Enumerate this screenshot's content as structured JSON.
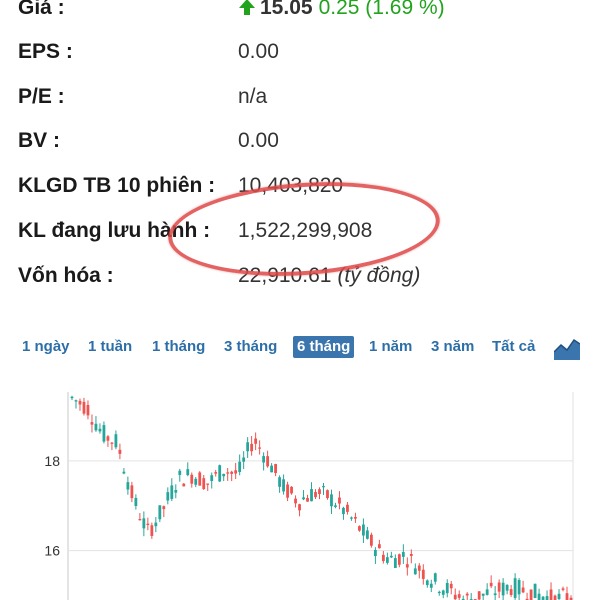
{
  "info": {
    "price": {
      "label": "Giá :",
      "value": "15.05",
      "change": "0.25 (1.69 %)"
    },
    "eps": {
      "label": "EPS :",
      "value": "0.00"
    },
    "pe": {
      "label": "P/E :",
      "value": "n/a"
    },
    "bv": {
      "label": "BV :",
      "value": "0.00"
    },
    "klgd": {
      "label": "KLGD TB 10 phiên :",
      "value": "10,403,820"
    },
    "outstanding": {
      "label": "KL đang lưu hành :",
      "value": "1,522,299,908"
    },
    "market_cap": {
      "label": "Vốn hóa :",
      "value": "22,910.61",
      "unit": "(tỷ đồng)"
    }
  },
  "tabs": [
    {
      "label": "1 ngày",
      "active": false
    },
    {
      "label": "1 tuần",
      "active": false
    },
    {
      "label": "1 tháng",
      "active": false
    },
    {
      "label": "3 tháng",
      "active": false
    },
    {
      "label": "6 tháng",
      "active": true
    },
    {
      "label": "1 năm",
      "active": false
    },
    {
      "label": "3 năm",
      "active": false
    },
    {
      "label": "Tất cả",
      "active": false
    }
  ],
  "colors": {
    "up": "#26a69a",
    "down": "#ef5350",
    "price_up": "#22a31e",
    "tab": "#2c6fa8",
    "highlight": "#de4848"
  },
  "chart_data": {
    "type": "candlestick",
    "yticks": [
      "18",
      "16"
    ],
    "y_tick_values": [
      18,
      16
    ],
    "ylim": [
      14.9,
      19.8
    ],
    "grid": true,
    "close_path": [
      19.4,
      19.2,
      18.6,
      18.4,
      17.2,
      16.4,
      16.9,
      17.6,
      17.7,
      17.5,
      17.8,
      17.7,
      18.5,
      18.0,
      17.4,
      17.1,
      17.3,
      17.2,
      16.9,
      16.5,
      16.1,
      15.8,
      15.9,
      15.6,
      15.3,
      15.1,
      14.9,
      15.0,
      15.1,
      15.2,
      15.1,
      15.0,
      14.9,
      15.0
    ],
    "candle_count": 126
  }
}
